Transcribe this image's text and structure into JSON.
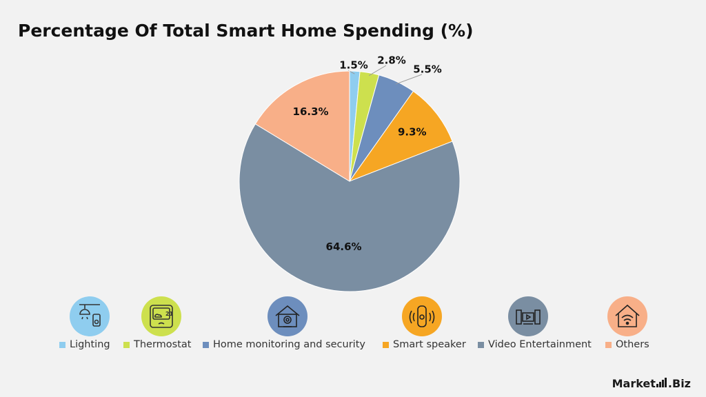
{
  "chart_data": {
    "type": "pie",
    "title": "Percentage Of Total Smart Home Spending (%)",
    "slices": [
      {
        "name": "Lighting",
        "value": 1.5,
        "label": "1.5%",
        "color": "#8fcdef"
      },
      {
        "name": "Thermostat",
        "value": 2.8,
        "label": "2.8%",
        "color": "#cde04e"
      },
      {
        "name": "Home monitoring and security",
        "value": 5.5,
        "label": "5.5%",
        "color": "#6d8ebd"
      },
      {
        "name": "Smart speaker",
        "value": 9.3,
        "label": "9.3%",
        "color": "#f6a623"
      },
      {
        "name": "Video Entertainment",
        "value": 64.6,
        "label": "64.6%",
        "color": "#7a8ea2"
      },
      {
        "name": "Others",
        "value": 16.3,
        "label": "16.3%",
        "color": "#f8af88"
      }
    ],
    "legend_placement": "bottom"
  },
  "icons": [
    "lighting-icon",
    "thermostat-icon",
    "home-security-icon",
    "smart-speaker-icon",
    "video-entertainment-icon",
    "smart-home-wifi-icon"
  ],
  "icon_text": {
    "thermostat_reading": "21"
  },
  "brand": {
    "name_part1": "Market",
    "name_part2": ".Biz"
  }
}
